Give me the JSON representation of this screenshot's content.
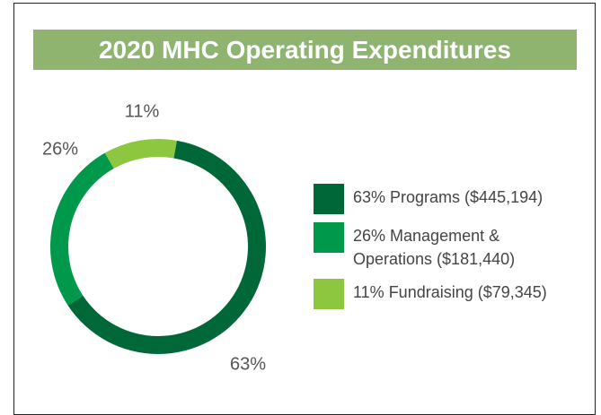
{
  "chart_data": {
    "type": "donut",
    "title": "2020 MHC Operating Expenditures",
    "categories": [
      "63% Programs ($445,194)",
      "26% Management & Operations ($181,440)",
      "11% Fundraising ($79,345)"
    ],
    "values": [
      63,
      26,
      11
    ],
    "value_labels": [
      "63%",
      "26%",
      "11%"
    ],
    "colors": [
      "#006838",
      "#00984a",
      "#8dc63f"
    ],
    "legend": "right"
  }
}
